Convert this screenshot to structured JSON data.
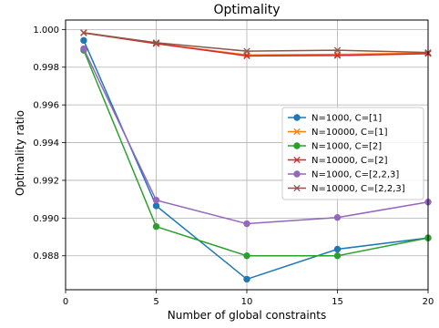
{
  "chart_data": {
    "type": "line",
    "title": "Optimality",
    "xlabel": "Number of global constraints",
    "ylabel": "Optimality ratio",
    "xlim": [
      0,
      20
    ],
    "ylim": [
      0.9862,
      1.0005
    ],
    "xticks": [
      0,
      5,
      10,
      15,
      20
    ],
    "xtick_labels": [
      "0",
      "5",
      "10",
      "15",
      "20"
    ],
    "yticks": [
      0.988,
      0.99,
      0.992,
      0.994,
      0.996,
      0.998,
      1.0
    ],
    "ytick_labels": [
      "0.988",
      "0.990",
      "0.992",
      "0.994",
      "0.996",
      "0.998",
      "1.000"
    ],
    "grid": true,
    "legend_position": "center-right",
    "x": [
      1,
      5,
      10,
      15,
      20
    ],
    "series": [
      {
        "name": "N=1000, C=[1]",
        "color": "#1f77b4",
        "marker": "circle",
        "values": [
          0.99942,
          0.99065,
          0.98676,
          0.98835,
          0.98895
        ]
      },
      {
        "name": "N=10000, C=[1]",
        "color": "#ff7f0e",
        "marker": "x",
        "values": [
          0.99982,
          0.99925,
          0.99865,
          0.99868,
          0.99875
        ]
      },
      {
        "name": "N=1000, C=[2]",
        "color": "#2ca02c",
        "marker": "circle",
        "values": [
          0.9989,
          0.98955,
          0.988,
          0.988,
          0.98895
        ]
      },
      {
        "name": "N=10000, C=[2]",
        "color": "#d62728",
        "marker": "x",
        "values": [
          0.99982,
          0.99925,
          0.9986,
          0.99862,
          0.99872
        ]
      },
      {
        "name": "N=1000, C=[2,2,3]",
        "color": "#9467bd",
        "marker": "circle",
        "values": [
          0.99898,
          0.99095,
          0.9897,
          0.99003,
          0.99085
        ]
      },
      {
        "name": "N=10000, C=[2,2,3]",
        "color": "#8c564b",
        "marker": "x",
        "values": [
          0.99983,
          0.9993,
          0.99885,
          0.9989,
          0.99878
        ]
      }
    ]
  }
}
